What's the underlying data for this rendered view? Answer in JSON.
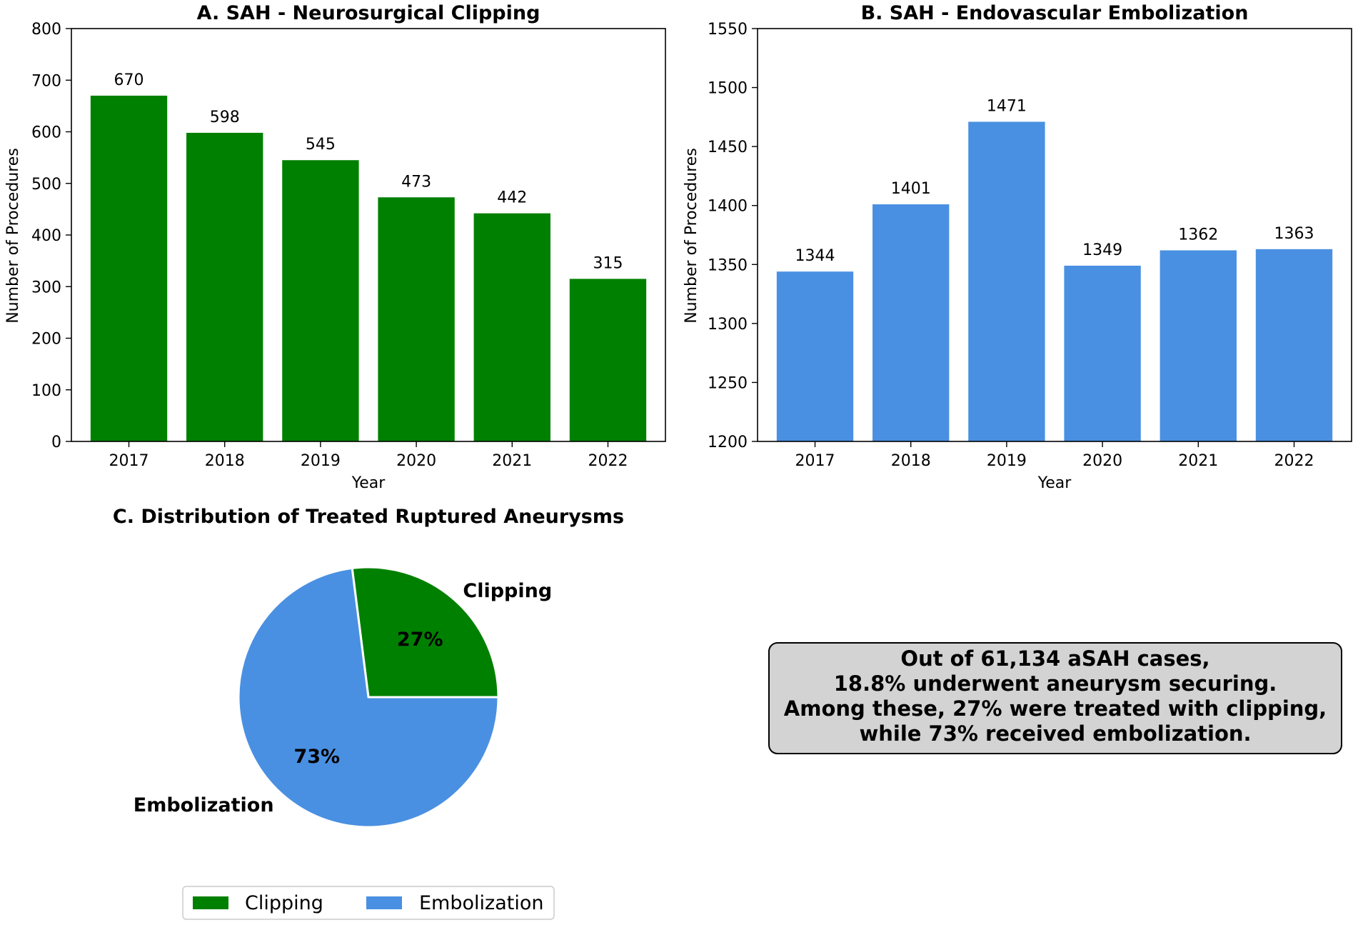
{
  "chart_data": [
    {
      "type": "bar",
      "title": "A. SAH - Neurosurgical Clipping",
      "xlabel": "Year",
      "ylabel": "Number of Procedures",
      "categories": [
        "2017",
        "2018",
        "2019",
        "2020",
        "2021",
        "2022"
      ],
      "values": [
        670,
        598,
        545,
        473,
        442,
        315
      ],
      "data_labels": [
        "670",
        "598",
        "545",
        "473",
        "442",
        "315"
      ],
      "ylim": [
        0,
        800
      ],
      "yticks": [
        "0",
        "100",
        "200",
        "300",
        "400",
        "500",
        "600",
        "700",
        "800"
      ],
      "ytick_values": [
        0,
        100,
        200,
        300,
        400,
        500,
        600,
        700,
        800
      ],
      "color": "#008000",
      "grid": false
    },
    {
      "type": "bar",
      "title": "B. SAH - Endovascular Embolization",
      "xlabel": "Year",
      "ylabel": "Number of Procedures",
      "categories": [
        "2017",
        "2018",
        "2019",
        "2020",
        "2021",
        "2022"
      ],
      "values": [
        1344,
        1401,
        1471,
        1349,
        1362,
        1363
      ],
      "data_labels": [
        "1344",
        "1401",
        "1471",
        "1349",
        "1362",
        "1363"
      ],
      "ylim": [
        1200,
        1550
      ],
      "yticks": [
        "1200",
        "1250",
        "1300",
        "1350",
        "1400",
        "1450",
        "1500",
        "1550"
      ],
      "ytick_values": [
        1200,
        1250,
        1300,
        1350,
        1400,
        1450,
        1500,
        1550
      ],
      "color": "#4a90e2",
      "grid": false
    },
    {
      "type": "pie",
      "title": "C. Distribution of Treated Ruptured Aneurysms",
      "labels": [
        "Clipping",
        "Embolization"
      ],
      "values": [
        27,
        73
      ],
      "pct_labels": [
        "27%",
        "73%"
      ],
      "colors": [
        "#008000",
        "#4a90e2"
      ],
      "legend": [
        "Clipping",
        "Embolization"
      ],
      "legend_position": "bottom"
    }
  ],
  "summary_box": {
    "line1": "Out of 61,134 aSAH cases,",
    "line2": "18.8% underwent aneurysm securing.",
    "line3": "Among these, 27% were treated with clipping,",
    "line4": "while 73% received embolization."
  }
}
